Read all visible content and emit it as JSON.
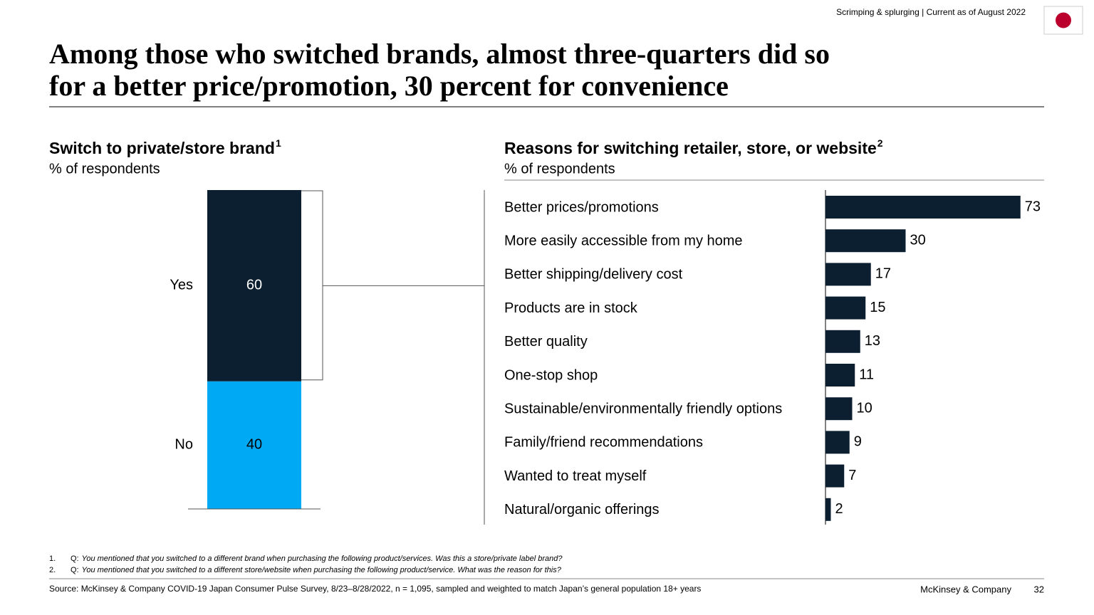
{
  "header": {
    "breadcrumb": "Scrimping & splurging | Current as of August 2022"
  },
  "title": [
    "Among those who switched brands, almost three-quarters did so",
    "for a better price/promotion, 30 percent for convenience"
  ],
  "chart_data": [
    {
      "type": "stacked_bar",
      "title": "Switch to private/store brand",
      "title_note": "1",
      "subtitle": "% of respondents",
      "categories": [
        "Yes",
        "No"
      ],
      "values": [
        60,
        40
      ],
      "colors": [
        "#0b1f30",
        "#00a9f4"
      ]
    },
    {
      "type": "hbar",
      "title": "Reasons for switching retailer, store, or website",
      "title_note": "2",
      "subtitle": "% of respondents",
      "categories": [
        "Better prices/promotions",
        "More easily accessible from my home",
        "Better shipping/delivery cost",
        "Products are in stock",
        "Better quality",
        "One-stop shop",
        "Sustainable/environmentally friendly options",
        "Family/friend recommendations",
        "Wanted to treat myself",
        "Natural/organic offerings"
      ],
      "values": [
        73,
        30,
        17,
        15,
        13,
        11,
        10,
        9,
        7,
        2
      ],
      "color": "#0b1f30"
    }
  ],
  "footnotes": [
    {
      "number": "1.",
      "prefix": "Q:",
      "text": "You mentioned that you switched to a different brand when purchasing the following product/services. Was this a store/private label brand?"
    },
    {
      "number": "2.",
      "prefix": "Q:",
      "text": "You mentioned that you switched to a different store/website when purchasing the following product/service. What was the reason for this?"
    }
  ],
  "source": "Source: McKinsey & Company COVID-19 Japan Consumer Pulse Survey, 8/23–8/28/2022, n = 1,095, sampled and weighted to match Japan’s general population 18+ years",
  "company": "McKinsey & Company",
  "page_number": "32"
}
